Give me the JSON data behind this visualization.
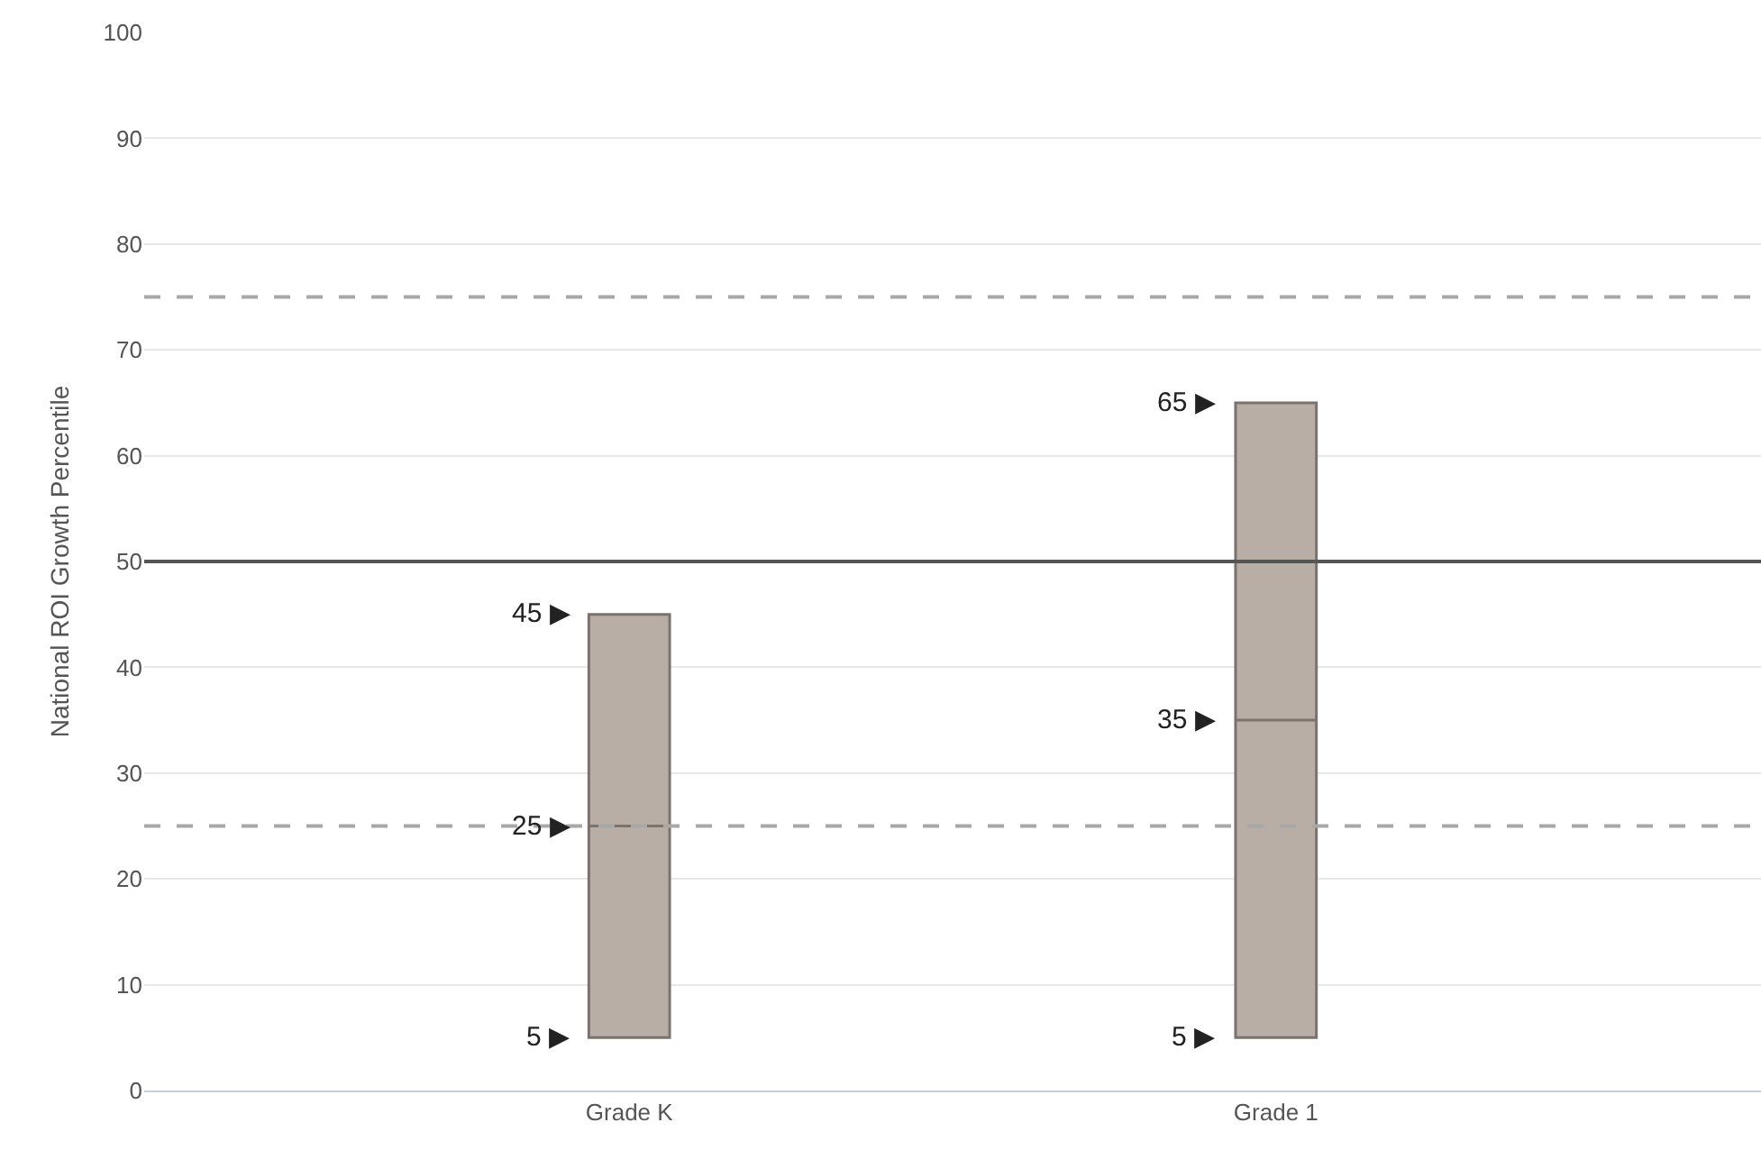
{
  "chart_data": {
    "type": "box",
    "ylabel": "National ROI Growth Percentile",
    "categories": [
      "Grade K",
      "Grade 1"
    ],
    "boxes": [
      {
        "low": 5,
        "q1": 5,
        "median": 25,
        "q3": 45,
        "high": 45
      },
      {
        "low": 5,
        "q1": 5,
        "median": 35,
        "q3": 65,
        "high": 65
      }
    ],
    "color": "#b9aea6",
    "ylim": [
      0,
      100
    ],
    "yticks": [
      0,
      10,
      20,
      30,
      40,
      50,
      60,
      70,
      80,
      90,
      100
    ],
    "grid": "y",
    "legend": false,
    "ref_lines": [
      {
        "axis": "y",
        "value": 75,
        "color": "#a8a8a8",
        "line_style": "dashed"
      },
      {
        "axis": "y",
        "value": 50,
        "color": "#555555",
        "line_style": "solid"
      },
      {
        "axis": "y",
        "value": 25,
        "color": "#a8a8a8",
        "line_style": "dashed"
      }
    ],
    "annotations": [
      {
        "text": "45 ▶",
        "x": "Grade K",
        "y": 45
      },
      {
        "text": "25 ▶",
        "x": "Grade K",
        "y": 25
      },
      {
        "text": "5 ▶",
        "x": "Grade K",
        "y": 5
      },
      {
        "text": "65 ▶",
        "x": "Grade 1",
        "y": 65
      },
      {
        "text": "35 ▶",
        "x": "Grade 1",
        "y": 35
      },
      {
        "text": "5 ▶",
        "x": "Grade 1",
        "y": 5
      }
    ]
  }
}
